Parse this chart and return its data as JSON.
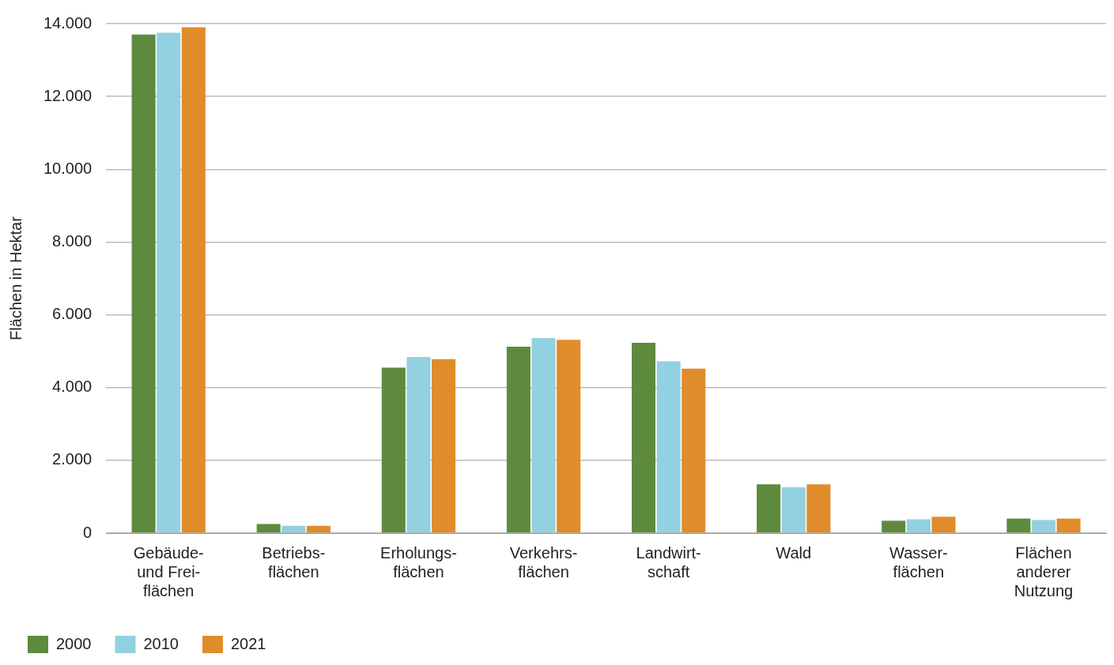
{
  "chart_data": {
    "type": "bar",
    "ylabel": "Flächen in Hektar",
    "categories": [
      "Gebäude-\nund Frei-\nflächen",
      "Betriebs-\nflächen",
      "Erholungs-\nflächen",
      "Verkehrs-\nflächen",
      "Landwirt-\nschaft",
      "Wald",
      "Wasser-\nflächen",
      "Flächen\nanderer\nNutzung"
    ],
    "series": [
      {
        "name": "2000",
        "color": "#5e8a3e",
        "values": [
          13700,
          250,
          4550,
          5120,
          5230,
          1340,
          340,
          400
        ]
      },
      {
        "name": "2010",
        "color": "#93d0e0",
        "values": [
          13750,
          200,
          4840,
          5360,
          4720,
          1260,
          380,
          360
        ]
      },
      {
        "name": "2021",
        "color": "#e08c2a",
        "values": [
          13900,
          200,
          4780,
          5310,
          4520,
          1340,
          450,
          400
        ]
      }
    ],
    "ylim": [
      0,
      14000
    ],
    "yticks": [
      {
        "value": 0,
        "label": "0"
      },
      {
        "value": 2000,
        "label": "2.000"
      },
      {
        "value": 4000,
        "label": "4.000"
      },
      {
        "value": 6000,
        "label": "6.000"
      },
      {
        "value": 8000,
        "label": "8.000"
      },
      {
        "value": 10000,
        "label": "10.000"
      },
      {
        "value": 12000,
        "label": "12.000"
      },
      {
        "value": 14000,
        "label": "14.000"
      }
    ],
    "grid": "y",
    "legend": "bottom left"
  }
}
